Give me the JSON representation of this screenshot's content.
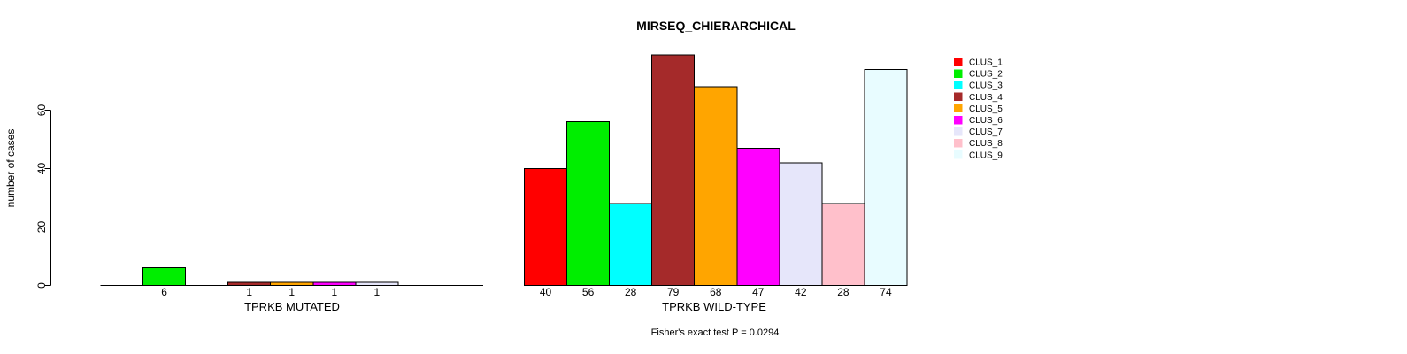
{
  "title": "MIRSEQ_CHIERARCHICAL",
  "footnote": "Fisher's exact test P = 0.0294",
  "y_axis": {
    "label": "number of cases",
    "ticks": [
      0,
      20,
      40,
      60
    ]
  },
  "clusters": [
    {
      "label": "CLUS_1",
      "color": "#ff0000"
    },
    {
      "label": "CLUS_2",
      "color": "#00ee00"
    },
    {
      "label": "CLUS_3",
      "color": "#00ffff"
    },
    {
      "label": "CLUS_4",
      "color": "#a52a2a"
    },
    {
      "label": "CLUS_5",
      "color": "#ffa500"
    },
    {
      "label": "CLUS_6",
      "color": "#ff00ff"
    },
    {
      "label": "CLUS_7",
      "color": "#e6e6fa"
    },
    {
      "label": "CLUS_8",
      "color": "#ffc0cb"
    },
    {
      "label": "CLUS_9",
      "color": "#e8fcff"
    }
  ],
  "chart_data": {
    "type": "bar",
    "title": "MIRSEQ_CHIERARCHICAL",
    "ylabel": "number of cases",
    "ylim": [
      0,
      80
    ],
    "yticks": [
      0,
      20,
      40,
      60
    ],
    "grid": false,
    "legend_position": "right",
    "categories": [
      "CLUS_1",
      "CLUS_2",
      "CLUS_3",
      "CLUS_4",
      "CLUS_5",
      "CLUS_6",
      "CLUS_7",
      "CLUS_8",
      "CLUS_9"
    ],
    "palette": [
      "#ff0000",
      "#00ee00",
      "#00ffff",
      "#a52a2a",
      "#ffa500",
      "#ff00ff",
      "#e6e6fa",
      "#ffc0cb",
      "#e8fcff"
    ],
    "panels": [
      {
        "xlabel": "TPRKB MUTATED",
        "values": [
          0,
          6,
          0,
          1,
          1,
          1,
          1,
          0,
          0
        ]
      },
      {
        "xlabel": "TPRKB WILD-TYPE",
        "values": [
          40,
          56,
          28,
          79,
          68,
          47,
          42,
          28,
          74
        ]
      }
    ],
    "annotation": "Fisher's exact test P = 0.0294"
  }
}
